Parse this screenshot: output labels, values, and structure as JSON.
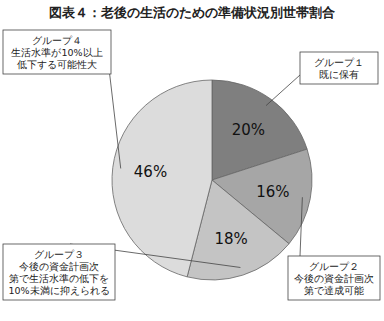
{
  "chart_data": {
    "type": "pie",
    "title": "図表４：老後の生活のための準備状況別世帯割合",
    "categories": [
      "グループ１\n既に保有",
      "グループ２\n今後の資金計画次\n第で達成可能",
      "グループ３\n今後の資金計画次\n第で生活水準の低下を\n10%未満に抑えられる",
      "グループ４\n生活水準が10%以上\n低下する可能性大"
    ],
    "values": [
      20,
      16,
      18,
      46
    ],
    "value_labels": [
      "20%",
      "16%",
      "18%",
      "46%"
    ],
    "colors": [
      "#7f7f7f",
      "#a6a6a6",
      "#c4c4c4",
      "#dcdcdc"
    ],
    "data_labels": true
  }
}
